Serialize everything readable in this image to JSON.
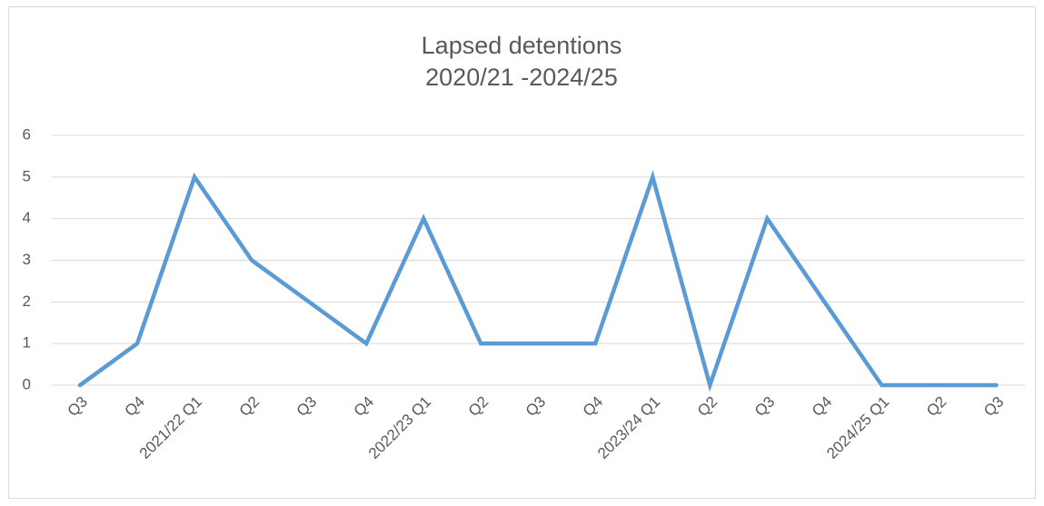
{
  "chart_data": {
    "type": "line",
    "title": "Lapsed detentions",
    "subtitle": "2020/21 -2024/25",
    "categories": [
      "Q3",
      "Q4",
      "2021/22 Q1",
      "Q2",
      "Q3",
      "Q4",
      "2022/23 Q1",
      "Q2",
      "Q3",
      "Q4",
      "2023/24 Q1",
      "Q2",
      "Q3",
      "Q4",
      "2024/25 Q1",
      "Q2",
      "Q3"
    ],
    "values": [
      0,
      1,
      5,
      3,
      2,
      1,
      4,
      1,
      1,
      1,
      5,
      0,
      4,
      2,
      0,
      0,
      0
    ],
    "color": "#5b9bd5",
    "ylim": [
      0,
      6
    ],
    "yticks": [
      0,
      1,
      2,
      3,
      4,
      5,
      6
    ],
    "grid": true
  }
}
